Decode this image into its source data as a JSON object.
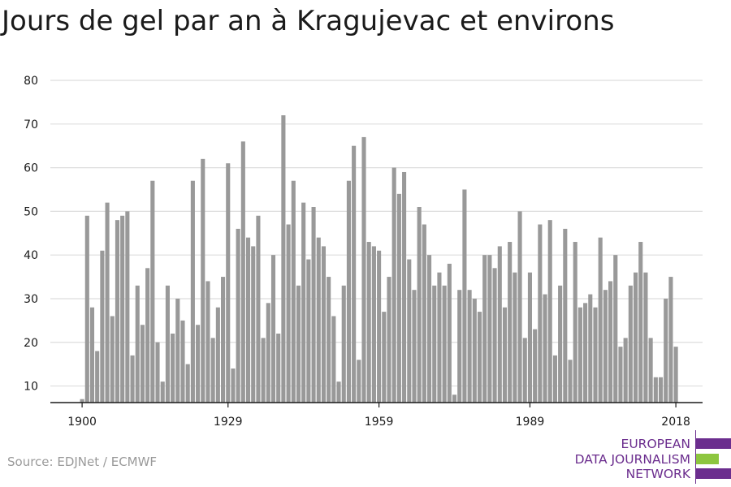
{
  "chart_data": {
    "type": "bar",
    "title": "Jours de gel par an à Kragujevac et environs",
    "x": [
      1900,
      1901,
      1902,
      1903,
      1904,
      1905,
      1906,
      1907,
      1908,
      1909,
      1910,
      1911,
      1912,
      1913,
      1914,
      1915,
      1916,
      1917,
      1918,
      1919,
      1920,
      1921,
      1922,
      1923,
      1924,
      1925,
      1926,
      1927,
      1928,
      1929,
      1930,
      1931,
      1932,
      1933,
      1934,
      1935,
      1936,
      1937,
      1938,
      1939,
      1940,
      1941,
      1942,
      1943,
      1944,
      1945,
      1946,
      1947,
      1948,
      1949,
      1950,
      1951,
      1952,
      1953,
      1954,
      1955,
      1956,
      1957,
      1958,
      1959,
      1960,
      1961,
      1962,
      1963,
      1964,
      1965,
      1966,
      1967,
      1968,
      1969,
      1970,
      1971,
      1972,
      1973,
      1974,
      1975,
      1976,
      1977,
      1978,
      1979,
      1980,
      1981,
      1982,
      1983,
      1984,
      1985,
      1986,
      1987,
      1988,
      1989,
      1990,
      1991,
      1992,
      1993,
      1994,
      1995,
      1996,
      1997,
      1998,
      1999,
      2000,
      2001,
      2002,
      2003,
      2004,
      2005,
      2006,
      2007,
      2008,
      2009,
      2010,
      2011,
      2012,
      2013,
      2014,
      2015,
      2016,
      2017,
      2018
    ],
    "values": [
      7,
      49,
      28,
      18,
      41,
      52,
      26,
      48,
      49,
      50,
      17,
      33,
      24,
      37,
      57,
      20,
      11,
      33,
      22,
      30,
      25,
      15,
      57,
      24,
      62,
      34,
      21,
      28,
      35,
      61,
      14,
      46,
      66,
      44,
      42,
      49,
      21,
      29,
      40,
      22,
      72,
      47,
      57,
      33,
      52,
      39,
      51,
      44,
      42,
      35,
      26,
      11,
      33,
      57,
      65,
      16,
      67,
      43,
      42,
      41,
      27,
      35,
      60,
      54,
      59,
      39,
      32,
      51,
      47,
      40,
      33,
      36,
      33,
      38,
      8,
      32,
      55,
      32,
      30,
      27,
      40,
      40,
      37,
      42,
      28,
      43,
      36,
      50,
      21,
      36,
      23,
      47,
      31,
      48,
      17,
      33,
      46,
      16,
      43,
      28,
      29,
      31,
      28,
      44,
      32,
      34,
      40,
      19,
      21,
      33,
      36,
      43,
      36,
      21,
      12,
      12,
      30,
      35,
      19
    ],
    "xticks": [
      1900,
      1929,
      1959,
      1989,
      2018
    ],
    "yticks": [
      10,
      20,
      30,
      40,
      50,
      60,
      70,
      80
    ],
    "ylim": [
      6.2,
      80
    ],
    "grid": true,
    "bar_color": "#999999",
    "grid_color": "#dddddd",
    "axis_color": "#1a1a1a"
  },
  "source": "Source: EDJNet / ECMWF",
  "logo": {
    "lines": [
      "EUROPEAN",
      "DATA JOURNALISM",
      "NETWORK"
    ],
    "colors": {
      "purple": "#6b2d8e",
      "green": "#8dc63f"
    }
  }
}
